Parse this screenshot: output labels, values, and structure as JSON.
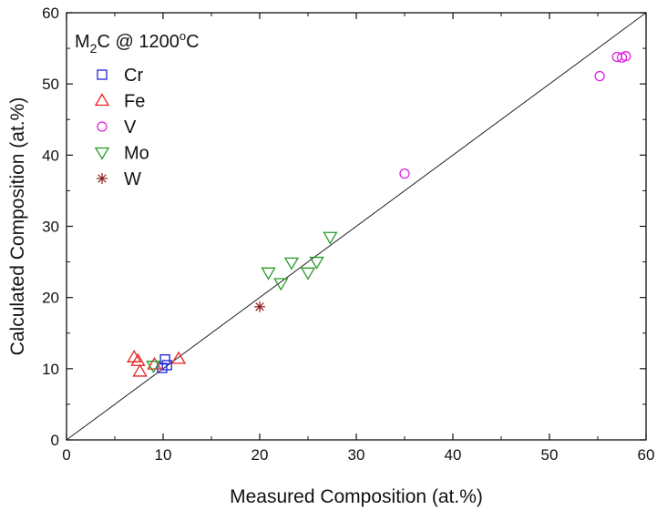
{
  "chart_data": {
    "type": "scatter",
    "title": "",
    "xlabel": "Measured Composition (at.%)",
    "ylabel": "Calculated Composition (at.%)",
    "xlim": [
      0,
      60
    ],
    "ylim": [
      0,
      60
    ],
    "xticks": [
      0,
      10,
      20,
      30,
      40,
      50,
      60
    ],
    "yticks": [
      0,
      10,
      20,
      30,
      40,
      50,
      60
    ],
    "grid": false,
    "legend_position": "top-left",
    "legend_title": {
      "prefix": "M",
      "subscript": "2",
      "suffix": "C @ 1200",
      "superscript": "o",
      "unit": "C"
    },
    "reference_line": {
      "x": [
        0,
        60
      ],
      "y": [
        0,
        60
      ]
    },
    "series": [
      {
        "name": "Cr",
        "marker": "square",
        "color": "#1f1fdd",
        "points": [
          [
            9.9,
            10.1
          ],
          [
            10.2,
            11.3
          ],
          [
            10.4,
            10.5
          ]
        ]
      },
      {
        "name": "Fe",
        "marker": "triangle-up",
        "color": "#e82020",
        "points": [
          [
            7.0,
            11.6
          ],
          [
            7.4,
            11.1
          ],
          [
            7.6,
            9.6
          ],
          [
            9.1,
            10.6
          ],
          [
            11.6,
            11.4
          ]
        ]
      },
      {
        "name": "V",
        "marker": "circle",
        "color": "#e020e0",
        "points": [
          [
            35.0,
            37.4
          ],
          [
            55.2,
            51.1
          ],
          [
            57.0,
            53.8
          ],
          [
            57.5,
            53.7
          ],
          [
            57.9,
            53.9
          ]
        ]
      },
      {
        "name": "Mo",
        "marker": "triangle-down",
        "color": "#2a9a2a",
        "points": [
          [
            9.0,
            10.4
          ],
          [
            20.9,
            23.5
          ],
          [
            22.2,
            22.0
          ],
          [
            23.3,
            24.9
          ],
          [
            25.0,
            23.5
          ],
          [
            25.9,
            25.0
          ],
          [
            27.3,
            28.5
          ]
        ]
      },
      {
        "name": "W",
        "marker": "asterisk",
        "color": "#8b1a1a",
        "points": [
          [
            20.0,
            18.7
          ]
        ]
      }
    ]
  }
}
